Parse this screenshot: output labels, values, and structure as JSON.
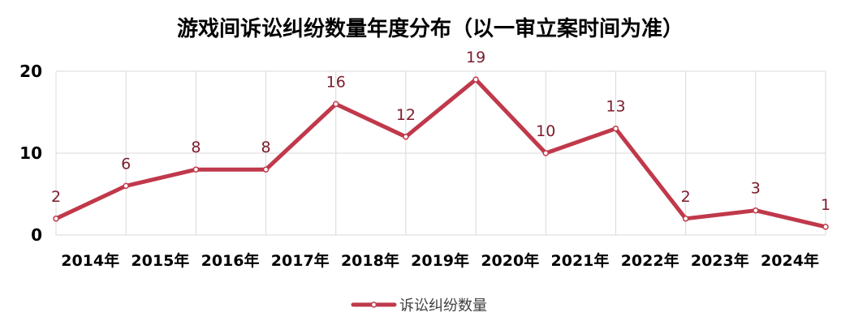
{
  "chart_data": {
    "type": "line",
    "title": "游戏间诉讼纠纷数量年度分布（以一审立案时间为准）",
    "xlabel": "",
    "ylabel": "",
    "categories": [
      "",
      "2014年",
      "2015年",
      "2016年",
      "2017年",
      "2018年",
      "2019年",
      "2020年",
      "2021年",
      "2022年",
      "2023年",
      "2024年"
    ],
    "series": [
      {
        "name": "诉讼纠纷数量",
        "values": [
          2,
          6,
          8,
          8,
          16,
          12,
          19,
          10,
          13,
          2,
          3,
          1
        ]
      }
    ],
    "ylim": [
      0,
      20
    ],
    "yticks": [
      0,
      10,
      20
    ],
    "grid": true,
    "legend_position": "bottom",
    "colors": {
      "line": "#c0394b",
      "label": "#7b1b2b",
      "grid": "#d9d9d9"
    }
  }
}
